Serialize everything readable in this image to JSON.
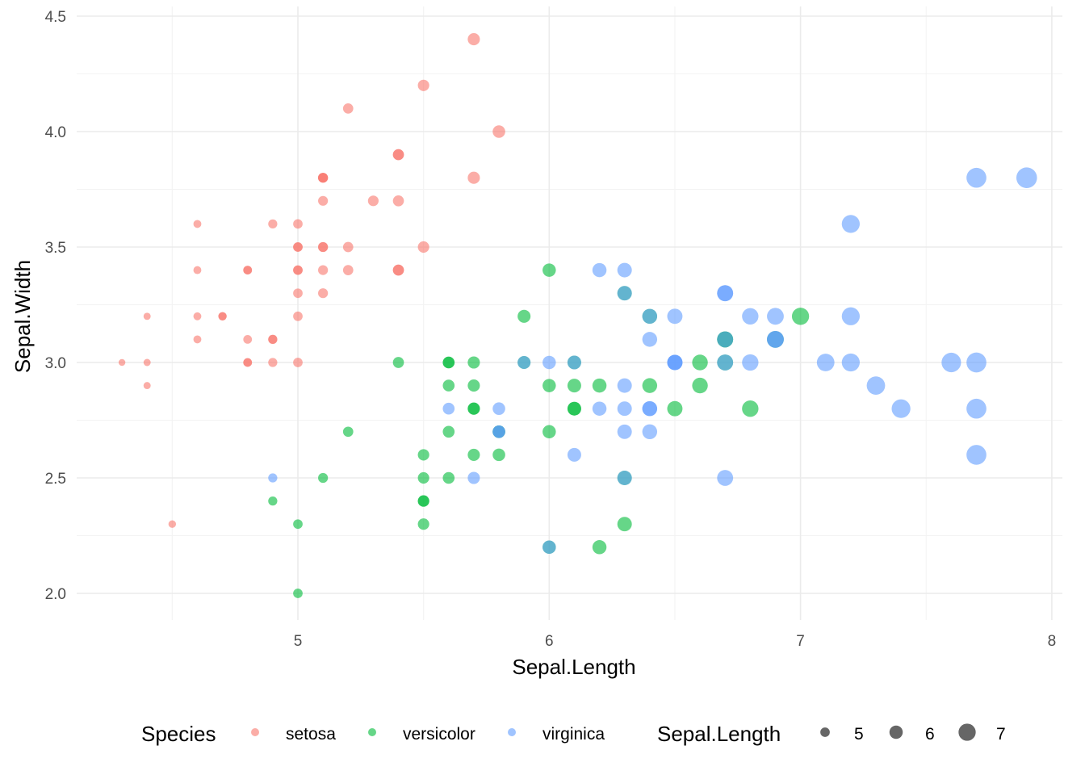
{
  "chart_data": {
    "type": "scatter",
    "title": "",
    "xlabel": "Sepal.Length",
    "ylabel": "Sepal.Width",
    "xlim": [
      4.3,
      7.9
    ],
    "ylim": [
      2.0,
      4.4
    ],
    "x_ticks": [
      5,
      6,
      7,
      8
    ],
    "x_tick_labels": [
      "5",
      "6",
      "7",
      "8"
    ],
    "y_ticks": [
      2.0,
      2.5,
      3.0,
      3.5,
      4.0,
      4.5
    ],
    "y_tick_labels": [
      "2.0",
      "2.5",
      "3.0",
      "3.5",
      "4.0",
      "4.5"
    ],
    "grid": true,
    "point_alpha": 0.6,
    "size_mapping": "Sepal.Length",
    "color_legend": {
      "title": "Species",
      "entries": [
        {
          "label": "setosa",
          "color": "#F8766D"
        },
        {
          "label": "versicolor",
          "color": "#00BA38"
        },
        {
          "label": "virginica",
          "color": "#619CFF"
        }
      ]
    },
    "size_legend": {
      "title": "Sepal.Length",
      "entries": [
        {
          "label": "5",
          "value": 5
        },
        {
          "label": "6",
          "value": 6
        },
        {
          "label": "7",
          "value": 7
        }
      ]
    },
    "legend_position": "bottom",
    "series": [
      {
        "name": "setosa",
        "color": "#F8766D",
        "points": [
          [
            5.1,
            3.5
          ],
          [
            4.9,
            3.0
          ],
          [
            4.7,
            3.2
          ],
          [
            4.6,
            3.1
          ],
          [
            5.0,
            3.6
          ],
          [
            5.4,
            3.9
          ],
          [
            4.6,
            3.4
          ],
          [
            5.0,
            3.4
          ],
          [
            4.4,
            2.9
          ],
          [
            4.9,
            3.1
          ],
          [
            5.4,
            3.7
          ],
          [
            4.8,
            3.4
          ],
          [
            4.8,
            3.0
          ],
          [
            4.3,
            3.0
          ],
          [
            5.8,
            4.0
          ],
          [
            5.7,
            4.4
          ],
          [
            5.4,
            3.9
          ],
          [
            5.1,
            3.5
          ],
          [
            5.7,
            3.8
          ],
          [
            5.1,
            3.8
          ],
          [
            5.4,
            3.4
          ],
          [
            5.1,
            3.7
          ],
          [
            4.6,
            3.6
          ],
          [
            5.1,
            3.3
          ],
          [
            4.8,
            3.4
          ],
          [
            5.0,
            3.0
          ],
          [
            5.0,
            3.4
          ],
          [
            5.2,
            3.5
          ],
          [
            5.2,
            3.4
          ],
          [
            4.7,
            3.2
          ],
          [
            4.8,
            3.1
          ],
          [
            5.4,
            3.4
          ],
          [
            5.2,
            4.1
          ],
          [
            5.5,
            4.2
          ],
          [
            4.9,
            3.1
          ],
          [
            5.0,
            3.2
          ],
          [
            5.5,
            3.5
          ],
          [
            4.9,
            3.6
          ],
          [
            4.4,
            3.0
          ],
          [
            5.1,
            3.4
          ],
          [
            5.0,
            3.5
          ],
          [
            4.5,
            2.3
          ],
          [
            4.4,
            3.2
          ],
          [
            5.0,
            3.5
          ],
          [
            5.1,
            3.8
          ],
          [
            4.8,
            3.0
          ],
          [
            5.1,
            3.8
          ],
          [
            4.6,
            3.2
          ],
          [
            5.3,
            3.7
          ],
          [
            5.0,
            3.3
          ]
        ]
      },
      {
        "name": "versicolor",
        "color": "#00BA38",
        "points": [
          [
            7.0,
            3.2
          ],
          [
            6.4,
            3.2
          ],
          [
            6.9,
            3.1
          ],
          [
            5.5,
            2.3
          ],
          [
            6.5,
            2.8
          ],
          [
            5.7,
            2.8
          ],
          [
            6.3,
            3.3
          ],
          [
            4.9,
            2.4
          ],
          [
            6.6,
            2.9
          ],
          [
            5.2,
            2.7
          ],
          [
            5.0,
            2.0
          ],
          [
            5.9,
            3.0
          ],
          [
            6.0,
            2.2
          ],
          [
            6.1,
            2.9
          ],
          [
            5.6,
            2.9
          ],
          [
            6.7,
            3.1
          ],
          [
            5.6,
            3.0
          ],
          [
            5.8,
            2.7
          ],
          [
            6.2,
            2.2
          ],
          [
            5.6,
            2.5
          ],
          [
            5.9,
            3.2
          ],
          [
            6.1,
            2.8
          ],
          [
            6.3,
            2.5
          ],
          [
            6.1,
            2.8
          ],
          [
            6.4,
            2.9
          ],
          [
            6.6,
            3.0
          ],
          [
            6.8,
            2.8
          ],
          [
            6.7,
            3.0
          ],
          [
            6.0,
            2.9
          ],
          [
            5.7,
            2.6
          ],
          [
            5.5,
            2.4
          ],
          [
            5.5,
            2.4
          ],
          [
            5.8,
            2.7
          ],
          [
            6.0,
            2.7
          ],
          [
            5.4,
            3.0
          ],
          [
            6.0,
            3.4
          ],
          [
            6.7,
            3.1
          ],
          [
            6.3,
            2.3
          ],
          [
            5.6,
            3.0
          ],
          [
            5.5,
            2.5
          ],
          [
            5.5,
            2.6
          ],
          [
            6.1,
            3.0
          ],
          [
            5.8,
            2.6
          ],
          [
            5.0,
            2.3
          ],
          [
            5.6,
            2.7
          ],
          [
            5.7,
            3.0
          ],
          [
            5.7,
            2.9
          ],
          [
            6.2,
            2.9
          ],
          [
            5.1,
            2.5
          ],
          [
            5.7,
            2.8
          ]
        ]
      },
      {
        "name": "virginica",
        "color": "#619CFF",
        "points": [
          [
            6.3,
            3.3
          ],
          [
            5.8,
            2.7
          ],
          [
            7.1,
            3.0
          ],
          [
            6.3,
            2.9
          ],
          [
            6.5,
            3.0
          ],
          [
            7.6,
            3.0
          ],
          [
            4.9,
            2.5
          ],
          [
            7.3,
            2.9
          ],
          [
            6.7,
            2.5
          ],
          [
            7.2,
            3.6
          ],
          [
            6.5,
            3.2
          ],
          [
            6.4,
            2.7
          ],
          [
            6.8,
            3.0
          ],
          [
            5.7,
            2.5
          ],
          [
            5.8,
            2.8
          ],
          [
            6.4,
            3.2
          ],
          [
            6.5,
            3.0
          ],
          [
            7.7,
            3.8
          ],
          [
            7.7,
            2.6
          ],
          [
            6.0,
            2.2
          ],
          [
            6.9,
            3.2
          ],
          [
            5.6,
            2.8
          ],
          [
            7.7,
            2.8
          ],
          [
            6.3,
            2.7
          ],
          [
            6.7,
            3.3
          ],
          [
            7.2,
            3.2
          ],
          [
            6.2,
            2.8
          ],
          [
            6.1,
            3.0
          ],
          [
            6.4,
            2.8
          ],
          [
            7.2,
            3.0
          ],
          [
            7.4,
            2.8
          ],
          [
            7.9,
            3.8
          ],
          [
            6.4,
            2.8
          ],
          [
            6.3,
            2.8
          ],
          [
            6.1,
            2.6
          ],
          [
            7.7,
            3.0
          ],
          [
            6.3,
            3.4
          ],
          [
            6.4,
            3.1
          ],
          [
            6.0,
            3.0
          ],
          [
            6.9,
            3.1
          ],
          [
            6.7,
            3.1
          ],
          [
            6.9,
            3.1
          ],
          [
            5.8,
            2.7
          ],
          [
            6.8,
            3.2
          ],
          [
            6.7,
            3.3
          ],
          [
            6.7,
            3.0
          ],
          [
            6.3,
            2.5
          ],
          [
            6.5,
            3.0
          ],
          [
            6.2,
            3.4
          ],
          [
            5.9,
            3.0
          ]
        ]
      }
    ]
  }
}
